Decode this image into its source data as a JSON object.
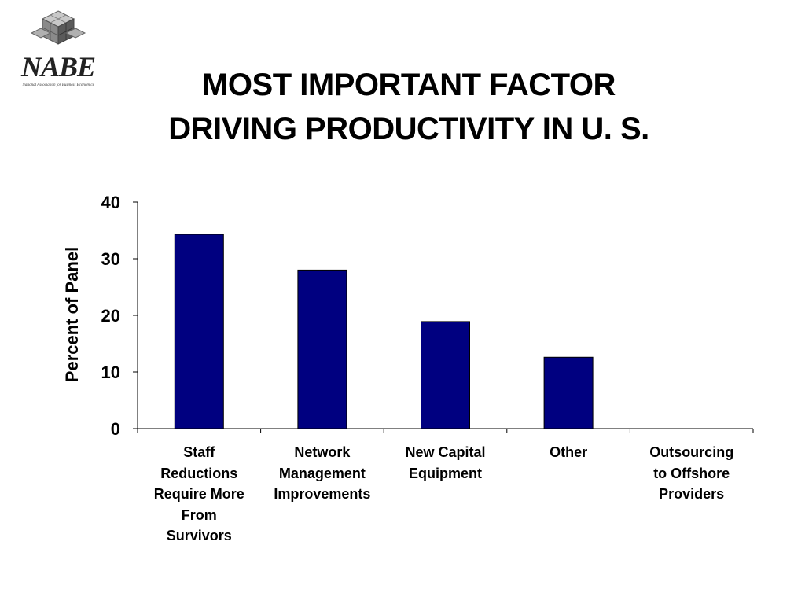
{
  "logo": {
    "name": "NABE",
    "subtitle": "National Association for Business Economics",
    "icon": "cube-grid-icon"
  },
  "title_lines": [
    "MOST IMPORTANT FACTOR",
    "DRIVING PRODUCTIVITY IN U. S."
  ],
  "chart_data": {
    "type": "bar",
    "title": "MOST IMPORTANT FACTOR DRIVING PRODUCTIVITY IN U. S.",
    "xlabel": "",
    "ylabel": "Percent of Panel",
    "ylim": [
      0,
      40
    ],
    "yticks": [
      0,
      10,
      20,
      30,
      40
    ],
    "categories": [
      "Staff\nReductions\nRequire More\nFrom\nSurvivors",
      "Network\nManagement\nImprovements",
      "New Capital\nEquipment",
      "Other",
      "Outsourcing\nto Offshore\nProviders"
    ],
    "values": [
      34.3,
      28.0,
      18.9,
      12.6,
      0
    ],
    "grid": false,
    "legend": "none",
    "bar_color": "#000080"
  }
}
